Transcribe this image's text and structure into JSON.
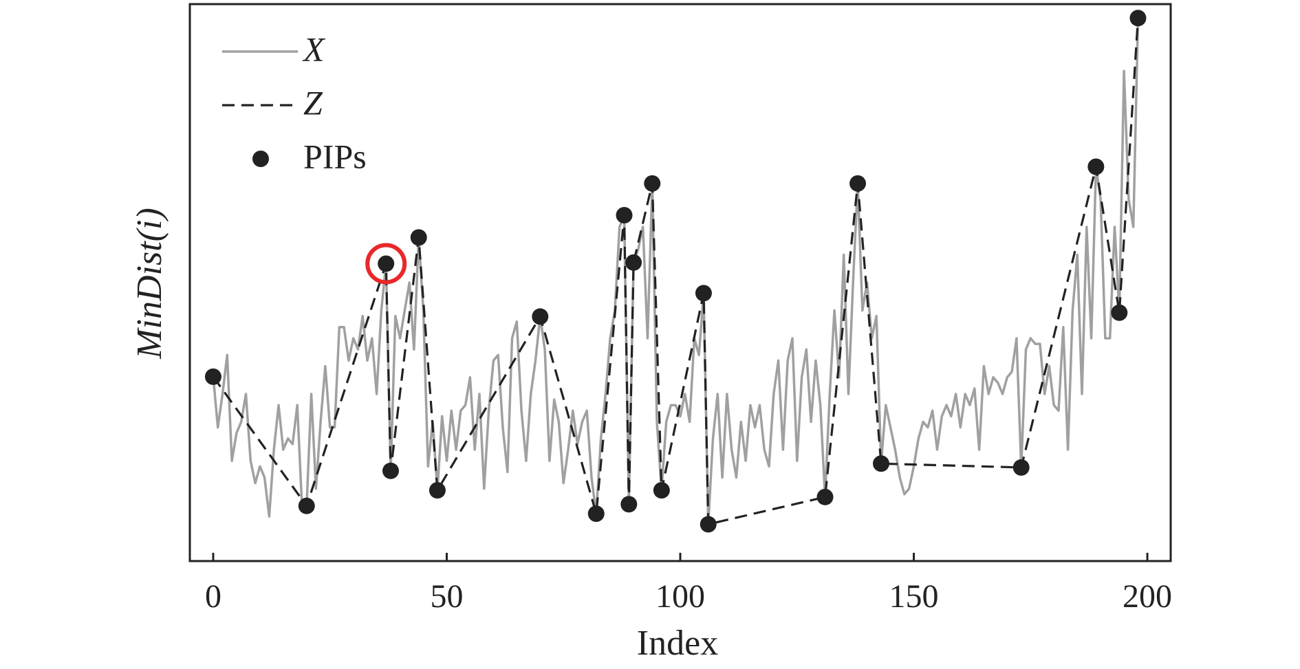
{
  "chart_data": {
    "type": "line",
    "xlabel": "Index",
    "ylabel": "MinDist(i)",
    "xlim": [
      -5,
      205
    ],
    "ylim": [
      0,
      1
    ],
    "xticks": [
      0,
      50,
      100,
      150,
      200
    ],
    "legend": "upper left",
    "series": [
      {
        "name": "X",
        "color": "#a0a0a0",
        "style": "solid",
        "x": [
          0,
          1,
          2,
          3,
          4,
          5,
          6,
          7,
          8,
          9,
          10,
          11,
          12,
          13,
          14,
          15,
          16,
          17,
          18,
          19,
          20,
          21,
          22,
          23,
          24,
          25,
          26,
          27,
          28,
          29,
          30,
          31,
          32,
          33,
          34,
          35,
          36,
          37,
          38,
          39,
          40,
          41,
          42,
          43,
          44,
          45,
          46,
          47,
          48,
          49,
          50,
          51,
          52,
          53,
          54,
          55,
          56,
          57,
          58,
          59,
          60,
          61,
          62,
          63,
          64,
          65,
          66,
          67,
          68,
          69,
          70,
          71,
          72,
          73,
          74,
          75,
          76,
          77,
          78,
          79,
          80,
          81,
          82,
          83,
          84,
          85,
          86,
          87,
          88,
          89,
          90,
          91,
          92,
          93,
          94,
          95,
          96,
          97,
          98,
          99,
          100,
          101,
          102,
          103,
          104,
          105,
          106,
          107,
          108,
          109,
          110,
          111,
          112,
          113,
          114,
          115,
          116,
          117,
          118,
          119,
          120,
          121,
          122,
          123,
          124,
          125,
          126,
          127,
          128,
          129,
          130,
          131,
          132,
          133,
          134,
          135,
          136,
          137,
          138,
          139,
          140,
          141,
          142,
          143,
          144,
          145,
          146,
          147,
          148,
          149,
          150,
          151,
          152,
          153,
          154,
          155,
          156,
          157,
          158,
          159,
          160,
          161,
          162,
          163,
          164,
          165,
          166,
          167,
          168,
          169,
          170,
          171,
          172,
          173,
          174,
          175,
          176,
          177,
          178,
          179,
          180,
          181,
          182,
          183,
          184,
          185,
          186,
          187,
          188,
          189,
          190,
          191,
          192,
          193,
          194,
          195,
          196,
          197,
          198
        ],
        "values": [
          0.331,
          0.24,
          0.3,
          0.37,
          0.18,
          0.23,
          0.25,
          0.3,
          0.18,
          0.14,
          0.17,
          0.15,
          0.08,
          0.2,
          0.28,
          0.2,
          0.22,
          0.21,
          0.28,
          0.1,
          0.099,
          0.3,
          0.13,
          0.25,
          0.35,
          0.24,
          0.24,
          0.42,
          0.42,
          0.36,
          0.4,
          0.38,
          0.44,
          0.36,
          0.4,
          0.3,
          0.45,
          0.534,
          0.162,
          0.44,
          0.4,
          0.45,
          0.5,
          0.38,
          0.581,
          0.45,
          0.17,
          0.25,
          0.127,
          0.26,
          0.18,
          0.27,
          0.2,
          0.27,
          0.28,
          0.33,
          0.2,
          0.3,
          0.13,
          0.27,
          0.36,
          0.37,
          0.24,
          0.16,
          0.4,
          0.43,
          0.27,
          0.18,
          0.3,
          0.36,
          0.439,
          0.38,
          0.18,
          0.29,
          0.25,
          0.14,
          0.2,
          0.27,
          0.21,
          0.25,
          0.27,
          0.15,
          0.085,
          0.22,
          0.3,
          0.4,
          0.45,
          0.6,
          0.621,
          0.102,
          0.536,
          0.56,
          0.6,
          0.4,
          0.678,
          0.25,
          0.127,
          0.25,
          0.28,
          0.28,
          0.26,
          0.3,
          0.25,
          0.4,
          0.37,
          0.481,
          0.066,
          0.22,
          0.3,
          0.15,
          0.3,
          0.2,
          0.15,
          0.25,
          0.18,
          0.28,
          0.24,
          0.28,
          0.2,
          0.17,
          0.3,
          0.36,
          0.2,
          0.36,
          0.4,
          0.18,
          0.33,
          0.38,
          0.25,
          0.36,
          0.28,
          0.115,
          0.3,
          0.45,
          0.33,
          0.55,
          0.3,
          0.5,
          0.678,
          0.45,
          0.5,
          0.4,
          0.44,
          0.175,
          0.28,
          0.24,
          0.2,
          0.15,
          0.12,
          0.13,
          0.17,
          0.22,
          0.25,
          0.24,
          0.27,
          0.2,
          0.26,
          0.28,
          0.26,
          0.3,
          0.24,
          0.3,
          0.28,
          0.31,
          0.2,
          0.35,
          0.3,
          0.33,
          0.32,
          0.3,
          0.33,
          0.34,
          0.4,
          0.168,
          0.38,
          0.4,
          0.39,
          0.39,
          0.3,
          0.35,
          0.28,
          0.27,
          0.42,
          0.2,
          0.45,
          0.55,
          0.3,
          0.6,
          0.4,
          0.708,
          0.65,
          0.4,
          0.4,
          0.6,
          0.446,
          0.88,
          0.65,
          0.6,
          0.975
        ]
      },
      {
        "name": "Z",
        "color": "#222222",
        "style": "dashed",
        "x": [
          0,
          20,
          37,
          38,
          44,
          48,
          70,
          82,
          88,
          89,
          90,
          94,
          96,
          105,
          106,
          131,
          138,
          143,
          173,
          189,
          194,
          198
        ],
        "values": [
          0.331,
          0.099,
          0.534,
          0.162,
          0.581,
          0.127,
          0.439,
          0.085,
          0.621,
          0.102,
          0.536,
          0.678,
          0.127,
          0.481,
          0.066,
          0.115,
          0.678,
          0.175,
          0.168,
          0.708,
          0.446,
          0.975
        ]
      },
      {
        "name": "PIPs",
        "color": "#222222",
        "style": "marker",
        "highlight_index": 2,
        "highlight_color": "#e8282b",
        "x": [
          0,
          20,
          37,
          38,
          44,
          48,
          70,
          82,
          88,
          89,
          90,
          94,
          96,
          105,
          106,
          131,
          138,
          143,
          173,
          189,
          194,
          198
        ],
        "values": [
          0.331,
          0.099,
          0.534,
          0.162,
          0.581,
          0.127,
          0.439,
          0.085,
          0.621,
          0.102,
          0.536,
          0.678,
          0.127,
          0.481,
          0.066,
          0.115,
          0.678,
          0.175,
          0.168,
          0.708,
          0.446,
          0.975
        ]
      }
    ]
  }
}
